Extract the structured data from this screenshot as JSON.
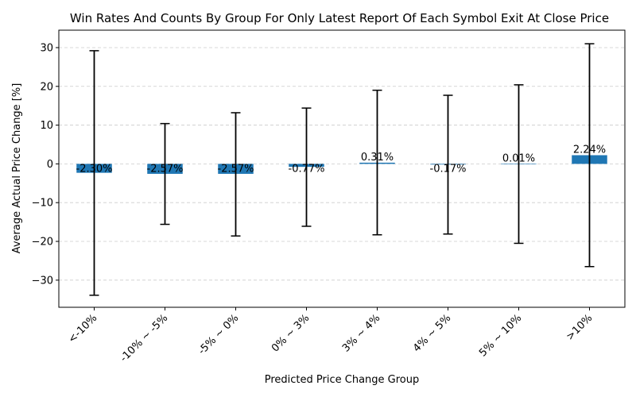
{
  "chart_data": {
    "type": "bar",
    "title": "Win Rates And Counts By Group For Only Latest Report Of Each Symbol Exit At Close Price",
    "xlabel": "Predicted Price Change Group",
    "ylabel": "Average Actual Price Change [%]",
    "categories": [
      "<-10%",
      "-10% ~ -5%",
      "-5% ~ 0%",
      "0% ~ 3%",
      "3% ~ 4%",
      "4% ~ 5%",
      "5% ~ 10%",
      ">10%"
    ],
    "values": [
      -2.3,
      -2.57,
      -2.57,
      -0.77,
      0.31,
      -0.17,
      0.01,
      2.24
    ],
    "value_labels": [
      "-2.30%",
      "-2.57%",
      "-2.57%",
      "-0.77%",
      "0.31%",
      "-0.17%",
      "0.01%",
      "2.24%"
    ],
    "error_low": [
      -33.9,
      -15.6,
      -18.6,
      -16.1,
      -18.3,
      -18.1,
      -20.5,
      -26.5
    ],
    "error_high": [
      29.2,
      10.4,
      13.2,
      14.4,
      19.0,
      17.7,
      20.4,
      31.0
    ],
    "yticks": [
      -30,
      -20,
      -10,
      0,
      10,
      20,
      30
    ],
    "ylim": [
      -37,
      34.5
    ],
    "grid": "horizontal dashed",
    "bar_color": "#1f77b4"
  }
}
